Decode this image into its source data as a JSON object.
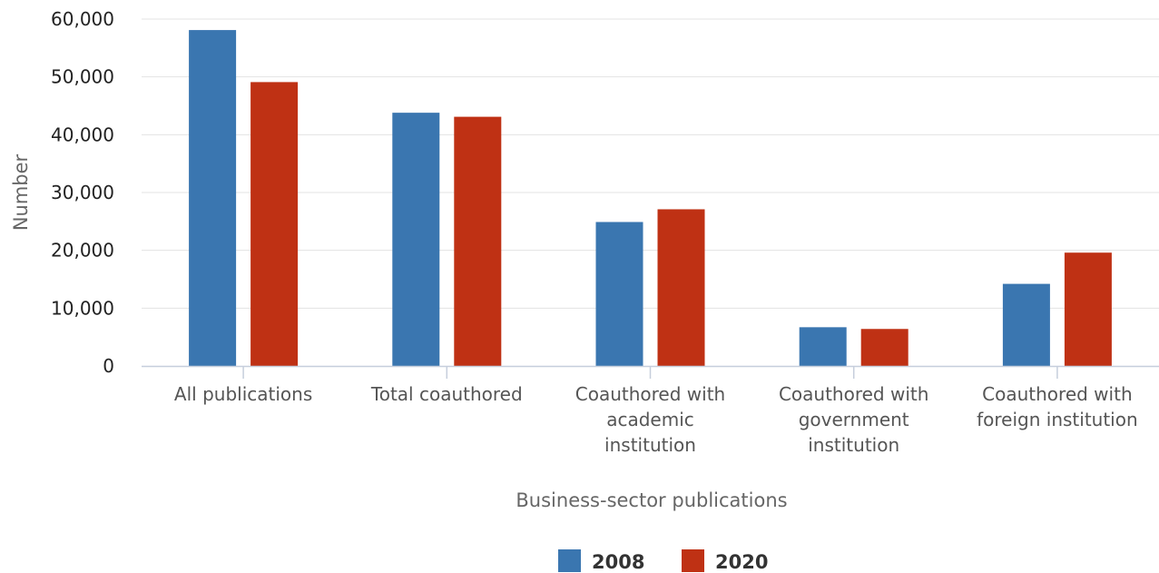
{
  "chart_data": {
    "type": "bar",
    "title": "",
    "xlabel": "Business-sector publications",
    "ylabel": "Number",
    "ylim": [
      0,
      60000
    ],
    "yticks": [
      0,
      10000,
      20000,
      30000,
      40000,
      50000,
      60000
    ],
    "ytick_labels": [
      "0",
      "10,000",
      "20,000",
      "30,000",
      "40,000",
      "50,000",
      "60,000"
    ],
    "categories": [
      [
        "All publications"
      ],
      [
        "Total coauthored"
      ],
      [
        "Coauthored with",
        "academic",
        "institution"
      ],
      [
        "Coauthored with",
        "government",
        "institution"
      ],
      [
        "Coauthored with",
        "foreign institution"
      ]
    ],
    "series": [
      {
        "name": "2008",
        "color": "#3a76b0",
        "values": [
          58100,
          43800,
          24900,
          6700,
          14200
        ]
      },
      {
        "name": "2020",
        "color": "#bf3114",
        "values": [
          49100,
          43100,
          27100,
          6400,
          19600
        ]
      }
    ],
    "grid": true,
    "legend_position": "bottom-center"
  }
}
